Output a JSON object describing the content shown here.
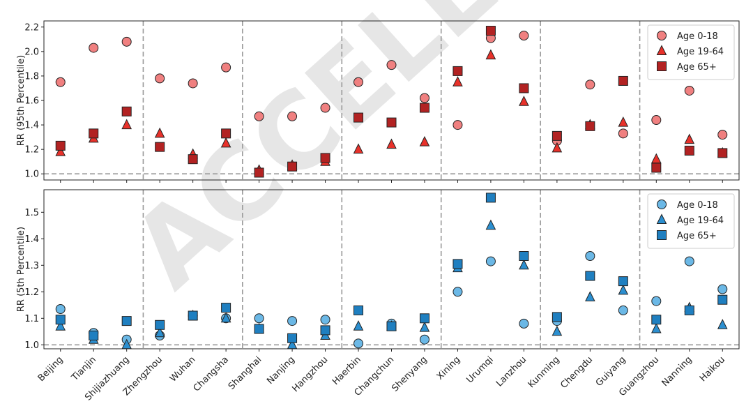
{
  "watermark": "ACCELERA",
  "chart_data": [
    {
      "type": "scatter",
      "ylabel": "RR (95th Percentile)",
      "ylim": [
        0.95,
        2.25
      ],
      "yticks": [
        1.0,
        1.2,
        1.4,
        1.6,
        1.8,
        2.0,
        2.2
      ],
      "categories": [
        "Beijing",
        "Tianjin",
        "Shijiazhuang",
        "Zhengzhou",
        "Wuhan",
        "Changsha",
        "Shanghai",
        "Nanjing",
        "Hangzhou",
        "Haerbin",
        "Changchun",
        "Shenyang",
        "Xining",
        "Urumqi",
        "Lanzhou",
        "Kunming",
        "Chengdu",
        "Guiyang",
        "Guangzhou",
        "Nanning",
        "Haikou"
      ],
      "region_boundaries_after": [
        2,
        5,
        8,
        11,
        14,
        17
      ],
      "reference_line": 1.0,
      "legend_position": "top-right",
      "colors": {
        "fill": "#f08080",
        "dark": "#b22222"
      },
      "series": [
        {
          "name": "Age 0-18",
          "marker": "circle",
          "color": "#f08080",
          "values": [
            1.75,
            2.03,
            2.08,
            1.78,
            1.74,
            1.87,
            1.47,
            1.47,
            1.54,
            1.75,
            1.89,
            1.62,
            1.4,
            2.11,
            2.13,
            1.27,
            1.73,
            1.33,
            1.44,
            1.68,
            1.32
          ]
        },
        {
          "name": "Age 19-64",
          "marker": "triangle",
          "color": "#e8312a",
          "values": [
            1.18,
            1.29,
            1.4,
            1.33,
            1.16,
            1.25,
            1.03,
            1.07,
            1.1,
            1.2,
            1.24,
            1.26,
            1.75,
            1.97,
            1.59,
            1.21,
            1.4,
            1.42,
            1.12,
            1.28,
            1.17
          ]
        },
        {
          "name": "Age 65+",
          "marker": "square",
          "color": "#b22222",
          "values": [
            1.23,
            1.33,
            1.51,
            1.22,
            1.12,
            1.33,
            1.01,
            1.06,
            1.13,
            1.46,
            1.42,
            1.54,
            1.84,
            2.17,
            1.7,
            1.31,
            1.39,
            1.76,
            1.05,
            1.19,
            1.17
          ]
        }
      ]
    },
    {
      "type": "scatter",
      "ylabel": "RR (5th Percentile)",
      "ylim": [
        0.985,
        1.585
      ],
      "yticks": [
        1.0,
        1.1,
        1.2,
        1.3,
        1.4,
        1.5
      ],
      "categories": [
        "Beijing",
        "Tianjin",
        "Shijiazhuang",
        "Zhengzhou",
        "Wuhan",
        "Changsha",
        "Shanghai",
        "Nanjing",
        "Hangzhou",
        "Haerbin",
        "Changchun",
        "Shenyang",
        "Xining",
        "Urumqi",
        "Lanzhou",
        "Kunming",
        "Chengdu",
        "Guiyang",
        "Guangzhou",
        "Nanning",
        "Haikou"
      ],
      "region_boundaries_after": [
        2,
        5,
        8,
        11,
        14,
        17
      ],
      "reference_line": 1.0,
      "legend_position": "top-right",
      "colors": {
        "fill": "#5aaee0",
        "dark": "#1f6fae"
      },
      "series": [
        {
          "name": "Age 0-18",
          "marker": "circle",
          "color": "#6bb8e6",
          "values": [
            1.135,
            1.045,
            1.02,
            1.035,
            1.11,
            1.1,
            1.1,
            1.09,
            1.095,
            1.005,
            1.08,
            1.02,
            1.2,
            1.315,
            1.08,
            1.09,
            1.335,
            1.13,
            1.165,
            1.315,
            1.21
          ]
        },
        {
          "name": "Age 19-64",
          "marker": "triangle",
          "color": "#2b8fd0",
          "values": [
            1.07,
            1.02,
            1.0,
            1.045,
            1.11,
            1.1,
            1.06,
            1.0,
            1.035,
            1.07,
            1.07,
            1.065,
            1.29,
            1.45,
            1.3,
            1.05,
            1.18,
            1.205,
            1.06,
            1.14,
            1.075
          ]
        },
        {
          "name": "Age 65+",
          "marker": "square",
          "color": "#1f7fc0",
          "values": [
            1.095,
            1.035,
            1.09,
            1.075,
            1.11,
            1.14,
            1.06,
            1.025,
            1.055,
            1.13,
            1.07,
            1.1,
            1.305,
            1.555,
            1.335,
            1.105,
            1.26,
            1.24,
            1.095,
            1.13,
            1.17
          ]
        }
      ]
    }
  ]
}
